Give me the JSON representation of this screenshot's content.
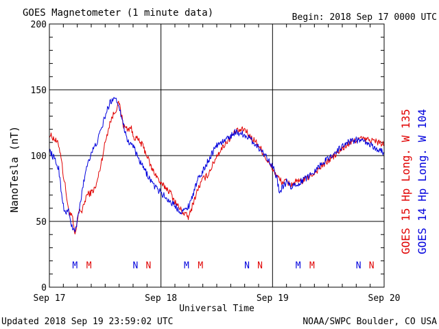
{
  "header": {
    "title": "GOES Magnetometer (1 minute data)",
    "begin": "Begin:  2018 Sep 17 0000 UTC"
  },
  "footer": {
    "updated": "Updated 2018 Sep 19 23:59:02 UTC",
    "credit": "NOAA/SWPC Boulder, CO USA"
  },
  "chart_data": {
    "type": "line",
    "title": "GOES Magnetometer (1 minute data)",
    "xlabel": "Universal Time",
    "ylabel": "NanoTesla (nT)",
    "ylim": [
      0,
      200
    ],
    "yticks": [
      0,
      50,
      100,
      150,
      200
    ],
    "xlim_hours": [
      0,
      72
    ],
    "xticks": [
      {
        "hour": 0,
        "label": "Sep 17"
      },
      {
        "hour": 24,
        "label": "Sep 18"
      },
      {
        "hour": 48,
        "label": "Sep 19"
      },
      {
        "hour": 72,
        "label": "Sep 20"
      }
    ],
    "grid": true,
    "legend": [
      {
        "text": "GOES 15 Hp  Long. W 135",
        "color": "#e00000"
      },
      {
        "text": "GOES 14 Hp  Long. W 104",
        "color": "#0000dd"
      }
    ],
    "series": [
      {
        "name": "GOES 15 Hp  Long. W 135",
        "color": "#e00000",
        "hours": [
          0,
          1,
          2,
          2.5,
          3,
          3.5,
          4,
          5,
          5.5,
          6,
          6.5,
          7,
          8,
          9,
          10,
          11,
          12,
          13,
          14,
          15,
          16,
          17,
          17.5,
          18,
          19,
          20,
          21,
          22,
          23,
          24,
          25,
          26,
          27,
          28,
          29,
          30,
          31,
          32,
          33,
          34,
          35,
          36,
          38,
          40,
          42,
          43,
          44,
          45,
          46,
          47,
          48,
          49,
          50,
          51,
          52,
          53,
          54,
          56,
          58,
          60,
          62,
          64,
          66,
          67,
          68,
          69,
          70,
          71,
          72
        ],
        "values": [
          116,
          113,
          108,
          100,
          85,
          75,
          60,
          52,
          38,
          50,
          60,
          57,
          70,
          72,
          76,
          92,
          110,
          125,
          133,
          140,
          122,
          120,
          122,
          115,
          112,
          108,
          100,
          90,
          85,
          78,
          76,
          72,
          65,
          60,
          56,
          53,
          65,
          75,
          82,
          85,
          92,
          100,
          110,
          118,
          120,
          115,
          112,
          108,
          102,
          95,
          90,
          84,
          80,
          80,
          78,
          80,
          80,
          84,
          90,
          96,
          102,
          108,
          112,
          113,
          112,
          112,
          111,
          110,
          108
        ]
      },
      {
        "name": "GOES 14 Hp  Long. W 104",
        "color": "#0000dd",
        "hours": [
          0,
          1,
          2,
          2.5,
          3,
          3.5,
          4,
          4.5,
          5,
          5.5,
          6,
          6.5,
          7,
          8,
          9,
          10,
          11,
          12,
          13,
          14,
          15,
          16,
          17,
          18,
          19,
          20,
          21,
          22,
          23,
          24,
          25,
          26,
          27,
          28,
          29,
          30,
          31,
          32,
          33,
          34,
          35,
          36,
          38,
          40,
          42,
          44,
          45,
          46,
          47,
          48,
          49,
          49.5,
          50,
          51,
          52,
          53,
          54,
          56,
          58,
          60,
          62,
          64,
          66,
          67,
          68,
          69,
          70,
          71,
          72
        ],
        "values": [
          104,
          98,
          90,
          75,
          62,
          55,
          60,
          50,
          45,
          42,
          50,
          60,
          72,
          92,
          102,
          108,
          118,
          130,
          140,
          145,
          138,
          122,
          110,
          108,
          98,
          92,
          86,
          80,
          75,
          72,
          68,
          65,
          62,
          58,
          58,
          62,
          72,
          82,
          88,
          95,
          102,
          108,
          112,
          118,
          116,
          110,
          106,
          102,
          98,
          92,
          82,
          70,
          75,
          80,
          76,
          78,
          80,
          85,
          92,
          98,
          104,
          110,
          112,
          111,
          110,
          108,
          106,
          104,
          102
        ]
      }
    ],
    "markers": [
      {
        "hour": 5.5,
        "label": "M",
        "color": "#0000dd"
      },
      {
        "hour": 8.5,
        "label": "M",
        "color": "#e00000"
      },
      {
        "hour": 18.5,
        "label": "N",
        "color": "#0000dd"
      },
      {
        "hour": 21.3,
        "label": "N",
        "color": "#e00000"
      },
      {
        "hour": 29.5,
        "label": "M",
        "color": "#0000dd"
      },
      {
        "hour": 32.5,
        "label": "M",
        "color": "#e00000"
      },
      {
        "hour": 42.5,
        "label": "N",
        "color": "#0000dd"
      },
      {
        "hour": 45.3,
        "label": "N",
        "color": "#e00000"
      },
      {
        "hour": 53.5,
        "label": "M",
        "color": "#0000dd"
      },
      {
        "hour": 56.5,
        "label": "M",
        "color": "#e00000"
      },
      {
        "hour": 66.5,
        "label": "N",
        "color": "#0000dd"
      },
      {
        "hour": 69.3,
        "label": "N",
        "color": "#e00000"
      }
    ],
    "marker_y": 17
  }
}
